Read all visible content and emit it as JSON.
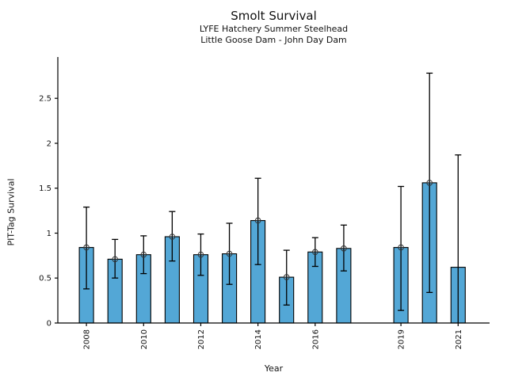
{
  "chart_data": {
    "type": "bar",
    "title": "Smolt Survival",
    "subtitle1": "LYFE Hatchery Summer Steelhead",
    "subtitle2": "Little Goose Dam - John Day Dam",
    "xlabel": "Year",
    "ylabel": "PIT-Tag Survival",
    "categories": [
      2008,
      2009,
      2010,
      2011,
      2012,
      2013,
      2014,
      2015,
      2016,
      2017,
      2019,
      2020,
      2021
    ],
    "values": [
      0.84,
      0.71,
      0.76,
      0.96,
      0.76,
      0.77,
      1.14,
      0.51,
      0.79,
      0.83,
      0.84,
      1.56,
      0.62
    ],
    "error_low": [
      0.38,
      0.5,
      0.55,
      0.69,
      0.53,
      0.43,
      0.65,
      0.2,
      0.63,
      0.58,
      0.14,
      0.34,
      0.0
    ],
    "error_high": [
      1.29,
      0.93,
      0.97,
      1.24,
      0.99,
      1.11,
      1.61,
      0.81,
      0.95,
      1.09,
      1.52,
      2.78,
      1.87
    ],
    "marker_at_top": [
      true,
      true,
      true,
      true,
      true,
      true,
      true,
      true,
      true,
      true,
      true,
      true,
      false
    ],
    "lower_cap": [
      true,
      true,
      true,
      true,
      true,
      true,
      true,
      true,
      true,
      true,
      true,
      true,
      false
    ],
    "xticks": [
      2008,
      2010,
      2012,
      2014,
      2016,
      2019,
      2021
    ],
    "yticks": [
      0,
      0.5,
      1,
      1.5,
      2,
      2.5
    ],
    "ytick_labels": [
      "0",
      "0.5",
      "1",
      "1.5",
      "2",
      "2.5"
    ],
    "xlim": [
      2007,
      2022.1
    ],
    "ylim": [
      0,
      2.96
    ],
    "grid": false,
    "legend_position": "none",
    "bar_color": "#53a7d6",
    "bar_edge_color": "#000000",
    "error_color": "#000000",
    "marker_edge_color": "#333333",
    "marker_style": "circle-cross",
    "text_color": "#111111"
  }
}
